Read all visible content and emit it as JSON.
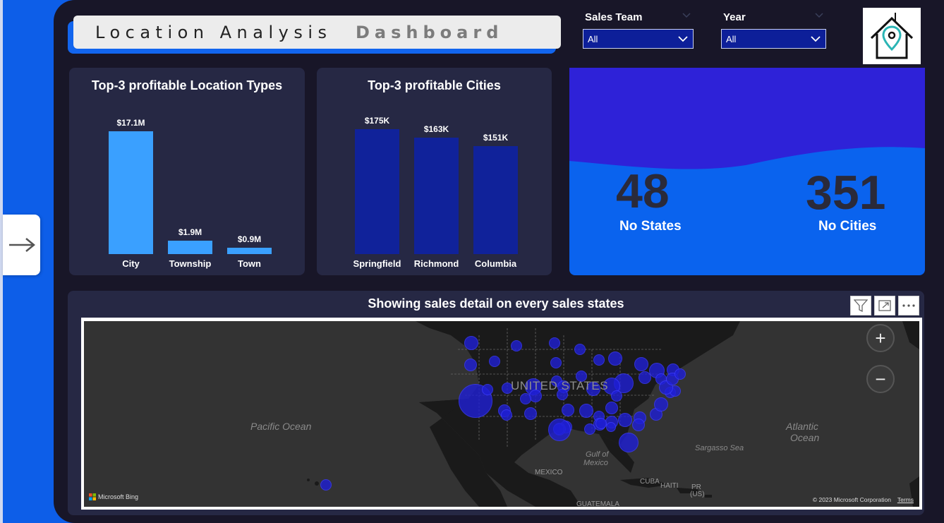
{
  "header": {
    "title_part1": "Location Analysis",
    "title_part2": "Dashboard"
  },
  "slicers": [
    {
      "label": "Sales Team",
      "value": "All"
    },
    {
      "label": "Year",
      "value": "All"
    }
  ],
  "logo": {
    "icon": "house-location-pin-icon"
  },
  "nav": {
    "icon": "arrow-right-icon"
  },
  "location_types_chart": {
    "chart_data": {
      "type": "bar",
      "title": "Top-3 profitable Location Types",
      "categories": [
        "City",
        "Township",
        "Town"
      ],
      "values": [
        17.1,
        1.9,
        0.9
      ],
      "value_labels": [
        "$17.1M",
        "$1.9M",
        "$0.9M"
      ],
      "unit": "$M",
      "color": "#3aa0ff"
    }
  },
  "cities_chart": {
    "chart_data": {
      "type": "bar",
      "title": "Top-3 profitable Cities",
      "categories": [
        "Springfield",
        "Richmond",
        "Columbia"
      ],
      "values": [
        175,
        163,
        151
      ],
      "value_labels": [
        "$175K",
        "$163K",
        "$151K"
      ],
      "unit": "$K",
      "color": "#10229a"
    }
  },
  "kpis": [
    {
      "value": "48",
      "label": "No States"
    },
    {
      "value": "351",
      "label": "No Cities"
    }
  ],
  "map": {
    "title": "Showing sales detail on every sales states",
    "labels": {
      "country": "UNITED STATES",
      "pacific": "Pacific Ocean",
      "atlantic_1": "Atlantic",
      "atlantic_2": "Ocean",
      "sargasso": "Sargasso Sea",
      "gulf_1": "Gulf of",
      "gulf_2": "Mexico",
      "mexico": "MEXICO",
      "cuba": "CUBA",
      "haiti": "HAITI",
      "pr": "PR",
      "us": "(US)",
      "guatemala": "GUATEMALA"
    },
    "brand": "Microsoft Bing",
    "copyright": "© 2023 Microsoft Corporation",
    "terms": "Terms",
    "zoom_in": "+",
    "zoom_out": "−",
    "bubble_color": "#1f1fd6"
  }
}
